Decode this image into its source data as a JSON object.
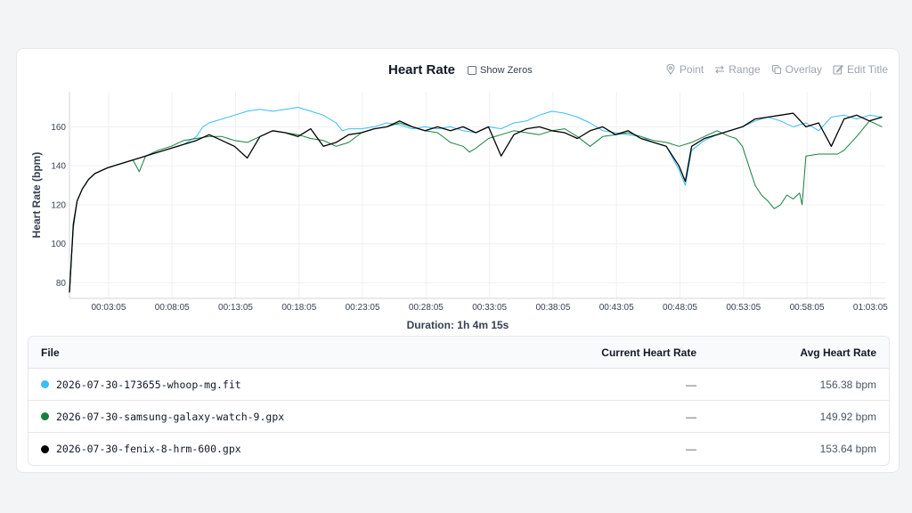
{
  "header": {
    "title": "Heart Rate",
    "show_zeros_label": "Show Zeros",
    "tools": {
      "point": "Point",
      "range": "Range",
      "overlay": "Overlay",
      "edit_title": "Edit Title"
    }
  },
  "duration_label": "Duration: 1h 4m 15s",
  "table": {
    "headers": {
      "file": "File",
      "current": "Current Heart Rate",
      "avg": "Avg Heart Rate"
    },
    "rows": [
      {
        "file": "2026-07-30-173655-whoop-mg.fit",
        "current": "—",
        "avg": "156.38 bpm",
        "color": "#38bdf8"
      },
      {
        "file": "2026-07-30-samsung-galaxy-watch-9.gpx",
        "current": "—",
        "avg": "149.92 bpm",
        "color": "#15803d"
      },
      {
        "file": "2026-07-30-fenix-8-hrm-600.gpx",
        "current": "—",
        "avg": "153.64 bpm",
        "color": "#000000"
      }
    ]
  },
  "chart_data": {
    "type": "line",
    "title": "Heart Rate",
    "xlabel": "Duration: 1h 4m 15s",
    "ylabel": "Heart Rate (bpm)",
    "x_unit": "minutes",
    "xlim": [
      0,
      64.25
    ],
    "ylim": [
      72,
      178
    ],
    "yticks": [
      80,
      100,
      120,
      140,
      160
    ],
    "xtick_minutes": [
      3.083,
      8.083,
      13.083,
      18.083,
      23.083,
      28.083,
      33.083,
      38.083,
      43.083,
      48.083,
      53.083,
      58.083,
      63.083
    ],
    "xtick_labels": [
      "00:03:05",
      "00:08:05",
      "00:13:05",
      "00:18:05",
      "00:23:05",
      "00:28:05",
      "00:33:05",
      "00:38:05",
      "00:43:05",
      "00:48:05",
      "00:53:05",
      "00:58:05",
      "01:03:05"
    ],
    "grid": true,
    "series": [
      {
        "name": "2026-07-30-173655-whoop-mg.fit",
        "color": "#38bdf8",
        "x": [
          0,
          0.3,
          0.6,
          1,
          1.5,
          2,
          3,
          4,
          5,
          6,
          7,
          8,
          9,
          10,
          10.5,
          11,
          12,
          13,
          14,
          15,
          16,
          17,
          18,
          19,
          20,
          21,
          21.5,
          22,
          23,
          24,
          25,
          26,
          27,
          28,
          29,
          30,
          31,
          32,
          33,
          34,
          35,
          36,
          37,
          38,
          39,
          40,
          41,
          42,
          43,
          44,
          45,
          46,
          47,
          48,
          48.5,
          49,
          50,
          51,
          52,
          53,
          54,
          55,
          56,
          57,
          58,
          59,
          60,
          61,
          62,
          63,
          64
        ],
        "y": [
          75,
          110,
          122,
          128,
          133,
          136,
          139,
          141,
          143,
          145,
          147,
          149,
          151,
          155,
          160,
          162,
          164,
          166,
          168,
          169,
          168,
          169,
          170,
          168,
          166,
          162,
          158,
          159,
          159,
          160,
          162,
          161,
          159,
          160,
          159,
          160,
          158,
          157,
          160,
          159,
          162,
          163,
          166,
          168,
          167,
          165,
          162,
          158,
          157,
          156,
          155,
          152,
          150,
          138,
          130,
          148,
          153,
          156,
          158,
          160,
          163,
          165,
          163,
          160,
          162,
          158,
          165,
          166,
          164,
          166,
          165
        ]
      },
      {
        "name": "2026-07-30-samsung-galaxy-watch-9.gpx",
        "color": "#15803d",
        "x": [
          0,
          0.3,
          0.6,
          1,
          1.5,
          2,
          3,
          4,
          5,
          5.5,
          6,
          7,
          8,
          9,
          10,
          11,
          12,
          13,
          14,
          15,
          16,
          17,
          18,
          19,
          20,
          21,
          22,
          23,
          24,
          25,
          26,
          27,
          28,
          29,
          30,
          31,
          31.5,
          32,
          33,
          34,
          35,
          36,
          37,
          38,
          39,
          40,
          41,
          42,
          43,
          44,
          45,
          46,
          47,
          48,
          49,
          50,
          51,
          52,
          52.5,
          53,
          53.5,
          54,
          54.5,
          55,
          55.5,
          56,
          56.5,
          57,
          57.5,
          57.7,
          58,
          59,
          60,
          60.5,
          61,
          62,
          63,
          64
        ],
        "y": [
          75,
          108,
          122,
          128,
          133,
          136,
          139,
          141,
          143,
          137,
          145,
          148,
          150,
          153,
          154,
          155,
          155,
          153,
          152,
          155,
          158,
          157,
          156,
          154,
          153,
          150,
          152,
          157,
          159,
          160,
          162,
          160,
          158,
          157,
          152,
          150,
          147,
          149,
          154,
          156,
          158,
          157,
          156,
          158,
          159,
          155,
          150,
          155,
          156,
          157,
          155,
          153,
          152,
          150,
          152,
          155,
          158,
          155,
          154,
          150,
          140,
          130,
          125,
          122,
          118,
          120,
          125,
          123,
          126,
          120,
          145,
          146,
          146,
          146,
          148,
          155,
          163,
          160
        ]
      },
      {
        "name": "2026-07-30-fenix-8-hrm-600.gpx",
        "color": "#000000",
        "x": [
          0,
          0.3,
          0.6,
          1,
          1.5,
          2,
          3,
          4,
          5,
          6,
          7,
          8,
          9,
          10,
          11,
          12,
          13,
          14,
          15,
          16,
          17,
          18,
          19,
          20,
          21,
          22,
          23,
          24,
          25,
          26,
          27,
          28,
          29,
          30,
          31,
          32,
          33,
          34,
          35,
          36,
          37,
          38,
          39,
          40,
          41,
          42,
          43,
          44,
          45,
          46,
          47,
          48,
          48.5,
          49,
          50,
          51,
          52,
          53,
          54,
          55,
          56,
          57,
          58,
          59,
          60,
          61,
          62,
          63,
          64
        ],
        "y": [
          75,
          110,
          122,
          128,
          133,
          136,
          139,
          141,
          143,
          145,
          147,
          149,
          151,
          153,
          156,
          153,
          150,
          144,
          155,
          158,
          157,
          155,
          159,
          150,
          152,
          156,
          157,
          159,
          160,
          163,
          160,
          158,
          160,
          158,
          160,
          157,
          160,
          145,
          156,
          159,
          160,
          158,
          157,
          154,
          158,
          160,
          156,
          158,
          154,
          152,
          150,
          140,
          132,
          150,
          154,
          156,
          158,
          160,
          164,
          165,
          166,
          167,
          160,
          162,
          150,
          164,
          166,
          163,
          165
        ]
      }
    ]
  }
}
